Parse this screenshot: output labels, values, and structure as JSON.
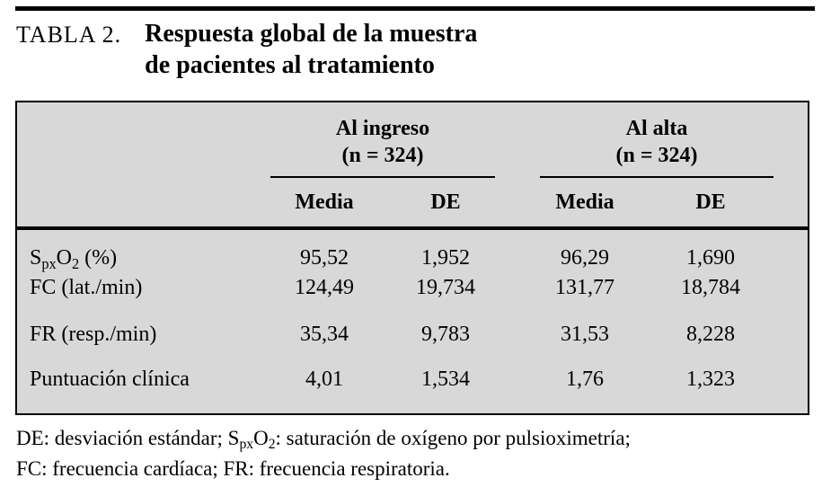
{
  "caption": {
    "label": "TABLA 2.",
    "title_line1": "Respuesta global de la muestra",
    "title_line2": "de pacientes al tratamiento"
  },
  "table": {
    "background_color": "#d8d8d8",
    "groups": [
      {
        "name": "Al ingreso",
        "n": "(n = 324)"
      },
      {
        "name": "Al alta",
        "n": "(n = 324)"
      }
    ],
    "columns": [
      "Media",
      "DE",
      "Media",
      "DE"
    ],
    "rows": [
      {
        "label_parts": [
          {
            "text": "S"
          },
          {
            "text": "px",
            "sub": true
          },
          {
            "text": "O"
          },
          {
            "text": "2",
            "sub": true
          },
          {
            "text": " (%)"
          }
        ],
        "values": [
          "95,52",
          "1,952",
          "96,29",
          "1,690"
        ]
      },
      {
        "label": "FC (lat./min)",
        "values": [
          "124,49",
          "19,734",
          "131,77",
          "18,784"
        ]
      },
      {
        "label": "FR (resp./min)",
        "values": [
          "35,34",
          "9,783",
          "31,53",
          "8,228"
        ]
      },
      {
        "label": "Puntuación clínica",
        "values": [
          "4,01",
          "1,534",
          "1,76",
          "1,323"
        ]
      }
    ]
  },
  "footnote": {
    "parts": [
      {
        "text": "DE: desviación estándar; S"
      },
      {
        "text": "px",
        "sub": true
      },
      {
        "text": "O"
      },
      {
        "text": "2",
        "sub": true
      },
      {
        "text": ": saturación de oxígeno por pulsioximetría;"
      }
    ],
    "line2": "FC: frecuencia cardíaca; FR: frecuencia respiratoria."
  }
}
